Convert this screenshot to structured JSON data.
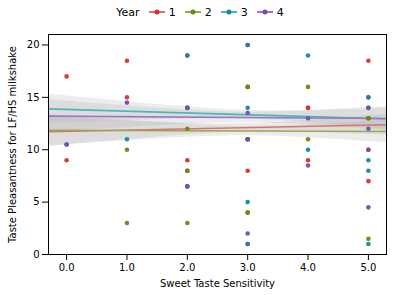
{
  "chart_data": {
    "type": "scatter",
    "xlabel": "Sweet Taste Sensitivity",
    "ylabel": "Taste Pleasantness for LF/HS milkshake",
    "xlim": [
      -0.3,
      5.3
    ],
    "ylim": [
      0,
      21
    ],
    "xticks": [
      0,
      1,
      2,
      3,
      4,
      5
    ],
    "yticks": [
      0,
      5,
      10,
      15,
      20
    ],
    "grid": false,
    "legend_title": "Year",
    "band_color": "#aaaaaa",
    "series": [
      {
        "name": "1",
        "color": "#e07070",
        "point_color": "#d93030",
        "x": [
          0,
          0,
          1,
          1,
          2,
          2,
          2,
          2,
          3,
          3,
          3,
          3,
          3,
          3,
          4,
          4,
          4,
          5,
          5,
          5,
          5,
          5
        ],
        "y": [
          17,
          9,
          18.5,
          15,
          19,
          14,
          9,
          8,
          20,
          16,
          11,
          8,
          4,
          1,
          14,
          9,
          14,
          18.5,
          15,
          13,
          10,
          7
        ],
        "line": {
          "x": [
            -0.3,
            5.3
          ],
          "y": [
            11.714,
            12.386
          ]
        },
        "band": {
          "x": [
            -0.3,
            0,
            1,
            2,
            3,
            4,
            5,
            5.3
          ],
          "lower": [
            10.3315,
            10.483,
            10.9782,
            11.4339,
            11.7262,
            11.6739,
            11.4582,
            11.3839
          ],
          "upper": [
            13.0965,
            13.017,
            12.7618,
            12.5461,
            12.4938,
            12.7861,
            13.2418,
            13.3881
          ]
        }
      },
      {
        "name": "2",
        "color": "#9aaa4a",
        "point_color": "#6a8a10",
        "x": [
          1,
          1,
          2,
          2,
          2,
          3,
          3,
          3,
          4,
          4,
          5,
          5
        ],
        "y": [
          3,
          10,
          12,
          8,
          3,
          16,
          11,
          4,
          16,
          11,
          13,
          1.5
        ],
        "line": {
          "x": [
            -0.3,
            5.3
          ],
          "y": [
            11.856,
            11.744
          ]
        },
        "band": {
          "x": [
            -0.3,
            0,
            1,
            2,
            3,
            4,
            5,
            5.3
          ],
          "lower": [
            10.3712,
            10.4865,
            10.858,
            11.1806,
            11.3281,
            11.1406,
            10.778,
            10.6574
          ],
          "upper": [
            13.3408,
            13.2135,
            12.802,
            12.4394,
            12.2519,
            12.3994,
            12.722,
            12.8306
          ]
        }
      },
      {
        "name": "3",
        "color": "#4ab8ba",
        "point_color": "#1888a0",
        "x": [
          0,
          1,
          2,
          2,
          2,
          3,
          3,
          3,
          3,
          3,
          4,
          4,
          5,
          5,
          5,
          5,
          5
        ],
        "y": [
          10.5,
          11,
          19,
          14,
          6.5,
          20,
          14,
          11,
          5,
          1,
          19,
          10,
          15,
          14,
          9,
          8,
          1
        ],
        "line": {
          "x": [
            -0.3,
            5.3
          ],
          "y": [
            13.901,
            12.949
          ]
        },
        "band": {
          "x": [
            -0.3,
            0,
            1,
            2,
            3,
            4,
            5,
            5.3
          ],
          "lower": [
            12.5159,
            12.5792,
            12.7788,
            12.9351,
            12.9277,
            12.5951,
            12.0988,
            11.9394
          ],
          "upper": [
            15.2861,
            15.1208,
            14.5812,
            14.0849,
            13.7523,
            13.7449,
            13.9012,
            13.9586
          ]
        }
      },
      {
        "name": "4",
        "color": "#9b78c8",
        "point_color": "#7050b0",
        "x": [
          0,
          1,
          2,
          2,
          3,
          3,
          3,
          4,
          4,
          5,
          5,
          5,
          5
        ],
        "y": [
          10.5,
          14.5,
          14,
          6.5,
          13.5,
          11,
          2,
          13,
          8.5,
          14,
          12,
          10,
          4.5
        ],
        "line": {
          "x": [
            -0.3,
            5.3
          ],
          "y": [
            13.212,
            12.988
          ]
        },
        "band": {
          "x": [
            -0.3,
            0,
            1,
            2,
            3,
            4,
            5,
            5.3
          ],
          "lower": [
            11.6453,
            11.7606,
            12.1308,
            12.4479,
            12.5808,
            12.3679,
            11.9708,
            11.8389
          ],
          "upper": [
            14.7787,
            14.6394,
            14.1892,
            13.7921,
            13.5792,
            13.7121,
            14.0292,
            14.1371
          ]
        }
      }
    ]
  }
}
